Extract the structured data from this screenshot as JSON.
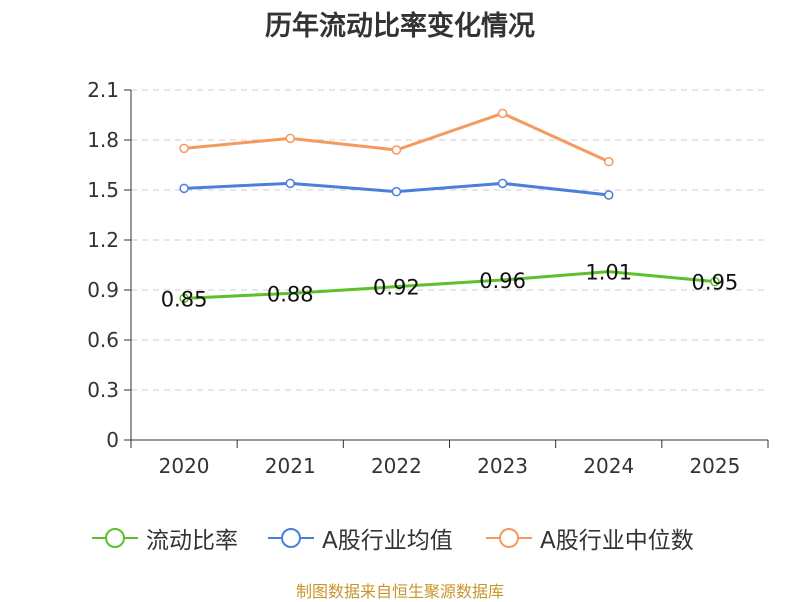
{
  "chart_data": {
    "type": "line",
    "title": "历年流动比率变化情况",
    "categories": [
      "2020",
      "2021",
      "2022",
      "2023",
      "2024",
      "2025"
    ],
    "ylim": [
      0,
      2.1
    ],
    "yticks": [
      "0",
      "0.3",
      "0.6",
      "0.9",
      "1.2",
      "1.5",
      "1.8",
      "2.1"
    ],
    "grid": true,
    "legend_position": "bottom",
    "series": [
      {
        "name": "流动比率",
        "color": "#5cc02a",
        "values": [
          0.85,
          0.88,
          0.92,
          0.96,
          1.01,
          0.95
        ],
        "labels": [
          "0.85",
          "0.88",
          "0.92",
          "0.96",
          "1.01",
          "0.95"
        ],
        "show_labels": true
      },
      {
        "name": "A股行业均值",
        "color": "#4a7fdc",
        "values": [
          1.51,
          1.54,
          1.49,
          1.54,
          1.47,
          null
        ],
        "show_labels": false
      },
      {
        "name": "A股行业中位数",
        "color": "#f59a5f",
        "values": [
          1.75,
          1.81,
          1.74,
          1.96,
          1.67,
          null
        ],
        "show_labels": false
      }
    ]
  },
  "legend": {
    "items": [
      {
        "label": "流动比率",
        "color": "#5cc02a"
      },
      {
        "label": "A股行业均值",
        "color": "#4a7fdc"
      },
      {
        "label": "A股行业中位数",
        "color": "#f59a5f"
      }
    ]
  },
  "source": "制图数据来自恒生聚源数据库"
}
